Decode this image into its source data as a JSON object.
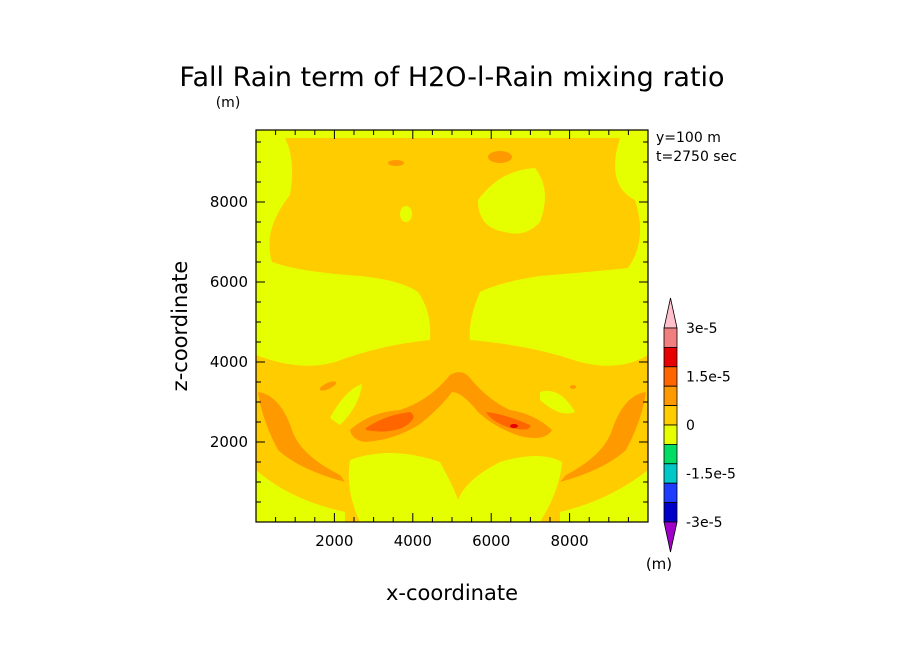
{
  "chart_data": {
    "type": "heatmap",
    "title": "Fall Rain term of H2O-l-Rain mixing ratio",
    "title_unit": "(m)",
    "xlabel": "x-coordinate",
    "ylabel": "z-coordinate",
    "xlim": [
      0,
      10000
    ],
    "ylim": [
      0,
      9800
    ],
    "x_ticks": [
      2000,
      4000,
      6000,
      8000
    ],
    "y_ticks": [
      2000,
      4000,
      6000,
      8000
    ],
    "x_tick_labels": [
      "2000",
      "4000",
      "6000",
      "8000"
    ],
    "y_tick_labels": [
      "2000",
      "4000",
      "6000",
      "8000"
    ],
    "annotations": [
      "y=100 m",
      "t=2750 sec"
    ],
    "colorbar": {
      "unit": "(m)",
      "levels": [
        -3e-05,
        -2.25e-05,
        -1.5e-05,
        -7.5e-06,
        0,
        7.5e-06,
        1.5e-05,
        2.25e-05,
        3e-05
      ],
      "tick_labels": [
        {
          "value": 3e-05,
          "text": "3e-5"
        },
        {
          "value": 1.5e-05,
          "text": "1.5e-5"
        },
        {
          "value": 0,
          "text": "0"
        },
        {
          "value": -1.5e-05,
          "text": "-1.5e-5"
        },
        {
          "value": -3e-05,
          "text": "-3e-5"
        }
      ],
      "colors": [
        "#a000c8",
        "#0000c8",
        "#1e3cff",
        "#00c8c8",
        "#00dc64",
        "#e6ff00",
        "#ffcc00",
        "#ff9900",
        "#ff6600",
        "#e60000",
        "#f08080",
        "#ffc0cb"
      ]
    },
    "regions": [
      {
        "name": "background",
        "value_range": [
          0,
          7.5e-06
        ],
        "color": "#e6ff00"
      },
      {
        "name": "upper-anvil",
        "value_range": [
          7.5e-06,
          1.5e-05
        ],
        "color": "#ffcc00"
      },
      {
        "name": "lower-core",
        "value_range": [
          7.5e-06,
          1.5e-05
        ],
        "color": "#ffcc00"
      },
      {
        "name": "side-bands",
        "value_range": [
          1.5e-05,
          2.25e-05
        ],
        "color": "#ff9900"
      },
      {
        "name": "central-arc",
        "value_range": [
          1.5e-05,
          2.25e-05
        ],
        "color": "#ff9900"
      },
      {
        "name": "peak-cores",
        "value_range": [
          2.25e-05,
          3e-05
        ],
        "color": "#ff6600"
      }
    ]
  }
}
